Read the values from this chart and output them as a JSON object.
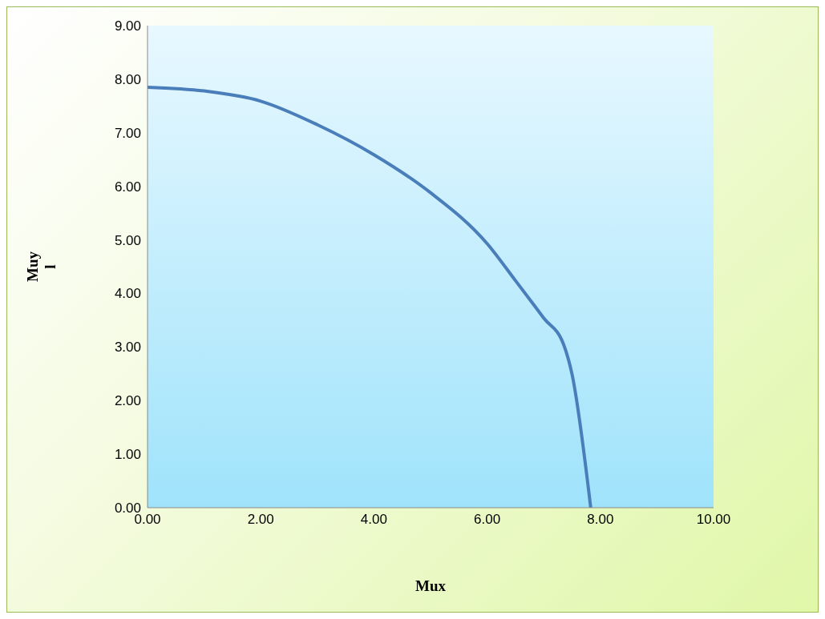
{
  "chart_data": {
    "type": "line",
    "xlabel": "Mux",
    "ylabel": "Muy\nl",
    "x": [
      0,
      1,
      2,
      3,
      4,
      5,
      6,
      6.5,
      7,
      7.35,
      7.5,
      7.83
    ],
    "series": [
      {
        "color": "#4a7ebb",
        "values": [
          7.85,
          7.78,
          7.59,
          7.15,
          6.59,
          5.88,
          4.93,
          4.24,
          3.54,
          3.05,
          2.49,
          0
        ]
      }
    ],
    "xlim": [
      0,
      10
    ],
    "xticks": [
      {
        "value": 0,
        "label": "0.00"
      },
      {
        "value": 2,
        "label": "2.00"
      },
      {
        "value": 4,
        "label": "4.00"
      },
      {
        "value": 6,
        "label": "6.00"
      },
      {
        "value": 8,
        "label": "8.00"
      },
      {
        "value": 10,
        "label": "10.00"
      }
    ],
    "ylim": [
      0,
      9
    ],
    "yticks": [
      {
        "value": 0,
        "label": "0.00"
      },
      {
        "value": 1,
        "label": "1.00"
      },
      {
        "value": 2,
        "label": "2.00"
      },
      {
        "value": 3,
        "label": "3.00"
      },
      {
        "value": 4,
        "label": "4.00"
      },
      {
        "value": 5,
        "label": "5.00"
      },
      {
        "value": 6,
        "label": "6.00"
      },
      {
        "value": 7,
        "label": "7.00"
      },
      {
        "value": 8,
        "label": "8.00"
      },
      {
        "value": 9,
        "label": "9.00"
      }
    ],
    "grid": false,
    "marker": "none",
    "line_style": "solid"
  }
}
